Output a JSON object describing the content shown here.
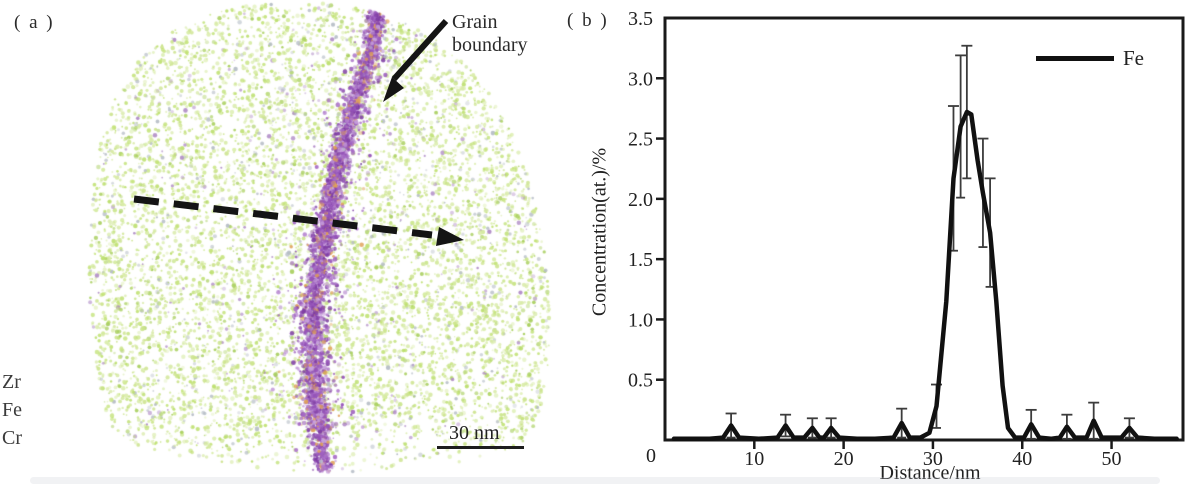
{
  "panel_a": {
    "label": "( a )",
    "annotation_grain_boundary": "Grain\nboundary",
    "element_labels": [
      "Zr",
      "Fe",
      "Cr"
    ],
    "scale_bar_label": "30 nm",
    "colors": {
      "matrix_greens": [
        "#cde48f",
        "#c2e276",
        "#d8ebA6",
        "#bcdf6e",
        "#a9cf5f"
      ],
      "stray_gray": "#b6bdc6",
      "stray_purple": "#b08cc6",
      "boundary_purples": [
        "#9553b8",
        "#a76cc6",
        "#7e3da3",
        "#c9a3dd"
      ],
      "boundary_orange": "#dfa055"
    }
  },
  "panel_b": {
    "label": "( b )"
  },
  "chart_data": {
    "type": "line",
    "title": "",
    "xlabel": "Distance/nm",
    "ylabel": "Concentration(at.)/%",
    "xlim": [
      0,
      58
    ],
    "ylim": [
      0,
      3.5
    ],
    "xticks": [
      10,
      20,
      30,
      40,
      50
    ],
    "yticks": [
      0.5,
      1.0,
      1.5,
      2.0,
      2.5,
      3.0,
      3.5
    ],
    "origin_label": "0",
    "grid": false,
    "legend_position": "top-right",
    "line_color": "#111111",
    "errorbar_color": "#3c3c3c",
    "series": [
      {
        "name": "Fe",
        "points": [
          {
            "x": 1.0,
            "y": 0.01
          },
          {
            "x": 3.0,
            "y": 0.01
          },
          {
            "x": 5.0,
            "y": 0.01
          },
          {
            "x": 6.5,
            "y": 0.02
          },
          {
            "x": 7.4,
            "y": 0.12,
            "err": 0.1
          },
          {
            "x": 8.3,
            "y": 0.02
          },
          {
            "x": 10.5,
            "y": 0.01
          },
          {
            "x": 12.6,
            "y": 0.02
          },
          {
            "x": 13.5,
            "y": 0.12,
            "err": 0.09
          },
          {
            "x": 14.4,
            "y": 0.02
          },
          {
            "x": 15.6,
            "y": 0.02
          },
          {
            "x": 16.5,
            "y": 0.1,
            "err": 0.08
          },
          {
            "x": 17.3,
            "y": 0.02
          },
          {
            "x": 17.8,
            "y": 0.02
          },
          {
            "x": 18.6,
            "y": 0.1,
            "err": 0.08
          },
          {
            "x": 19.5,
            "y": 0.02
          },
          {
            "x": 21.5,
            "y": 0.01
          },
          {
            "x": 23.5,
            "y": 0.01
          },
          {
            "x": 25.6,
            "y": 0.02
          },
          {
            "x": 26.5,
            "y": 0.14,
            "err": 0.12
          },
          {
            "x": 27.4,
            "y": 0.02
          },
          {
            "x": 28.6,
            "y": 0.02
          },
          {
            "x": 29.6,
            "y": 0.06
          },
          {
            "x": 30.4,
            "y": 0.28,
            "err": 0.18
          },
          {
            "x": 31.5,
            "y": 1.15
          },
          {
            "x": 32.3,
            "y": 2.17,
            "err": 0.6
          },
          {
            "x": 33.1,
            "y": 2.6,
            "err": 0.59
          },
          {
            "x": 33.8,
            "y": 2.72,
            "err": 0.55
          },
          {
            "x": 34.3,
            "y": 2.7
          },
          {
            "x": 35.0,
            "y": 2.32
          },
          {
            "x": 35.6,
            "y": 2.05,
            "err": 0.45
          },
          {
            "x": 36.4,
            "y": 1.72,
            "err": 0.45
          },
          {
            "x": 37.1,
            "y": 1.15
          },
          {
            "x": 37.8,
            "y": 0.45
          },
          {
            "x": 38.4,
            "y": 0.1
          },
          {
            "x": 39.2,
            "y": 0.02
          },
          {
            "x": 40.2,
            "y": 0.02
          },
          {
            "x": 41.0,
            "y": 0.13,
            "err": 0.12
          },
          {
            "x": 41.9,
            "y": 0.02
          },
          {
            "x": 43.2,
            "y": 0.01
          },
          {
            "x": 44.2,
            "y": 0.02
          },
          {
            "x": 45.0,
            "y": 0.11,
            "err": 0.1
          },
          {
            "x": 45.9,
            "y": 0.02
          },
          {
            "x": 47.2,
            "y": 0.02
          },
          {
            "x": 48.0,
            "y": 0.16,
            "err": 0.15
          },
          {
            "x": 48.9,
            "y": 0.02
          },
          {
            "x": 51.1,
            "y": 0.02
          },
          {
            "x": 52.0,
            "y": 0.1,
            "err": 0.08
          },
          {
            "x": 52.9,
            "y": 0.02
          },
          {
            "x": 54.8,
            "y": 0.01
          },
          {
            "x": 57.3,
            "y": 0.01
          }
        ]
      }
    ]
  }
}
